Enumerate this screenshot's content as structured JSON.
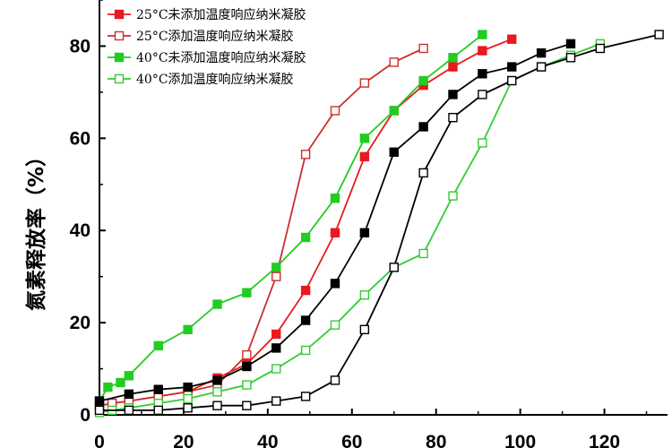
{
  "chart_data": {
    "type": "line",
    "title": "",
    "xlabel": "",
    "ylabel": "氮素释放率（%）",
    "xlim": [
      0,
      135
    ],
    "ylim": [
      0,
      90
    ],
    "x_ticks": [
      0,
      20,
      40,
      60,
      80,
      100,
      120
    ],
    "y_ticks": [
      0,
      20,
      40,
      60,
      80
    ],
    "legend_position": "top-left",
    "series": [
      {
        "name": "25°C未添加温度响应纳米凝胶",
        "color": "#e8191f",
        "marker": "filled-square",
        "x": [
          0,
          3,
          7,
          14,
          21,
          28,
          35,
          42,
          49,
          56,
          63,
          70,
          77,
          84,
          91,
          98
        ],
        "y": [
          2,
          2.5,
          3,
          4,
          5,
          8,
          11,
          17.5,
          27,
          39.5,
          56,
          66,
          71.5,
          75.5,
          79,
          81.5
        ]
      },
      {
        "name": "25°C添加温度响应纳米凝胶",
        "color": "#c9302c",
        "marker": "open-square",
        "x": [
          0,
          3,
          7,
          14,
          21,
          28,
          35,
          42,
          49,
          56,
          63,
          70,
          77
        ],
        "y": [
          2,
          2.5,
          3,
          4,
          5,
          6.5,
          13,
          30,
          56.5,
          66,
          72,
          76.5,
          79.5
        ]
      },
      {
        "name": "40°C未添加温度响应纳米凝胶",
        "color": "#22cc22",
        "marker": "filled-square",
        "x": [
          0,
          2,
          5,
          7,
          14,
          21,
          28,
          35,
          42,
          49,
          56,
          63,
          70,
          77,
          84,
          91
        ],
        "y": [
          3,
          6,
          7,
          8.5,
          15,
          18.5,
          24,
          26.5,
          32,
          38.5,
          47,
          60,
          66,
          72.5,
          77.5,
          82.5
        ]
      },
      {
        "name": "40°C添加温度响应纳米凝胶",
        "color": "#33cc33",
        "marker": "open-square",
        "x": [
          0,
          3,
          7,
          14,
          21,
          28,
          35,
          42,
          49,
          56,
          63,
          70,
          77,
          84,
          91,
          98,
          105,
          112,
          119
        ],
        "y": [
          0.5,
          1,
          1.5,
          2.5,
          3.5,
          5,
          6.5,
          10,
          14,
          19.5,
          26,
          32,
          35,
          47.5,
          59,
          72.5,
          75.5,
          78,
          80.5
        ]
      },
      {
        "name": "",
        "color": "#000000",
        "marker": "filled-square",
        "x": [
          0,
          7,
          14,
          21,
          28,
          35,
          42,
          49,
          56,
          63,
          70,
          77,
          84,
          91,
          98,
          105,
          112
        ],
        "y": [
          3,
          4.5,
          5.5,
          6,
          7.5,
          10.5,
          14.5,
          20.5,
          28.5,
          39.5,
          57,
          62.5,
          69.5,
          74,
          75.5,
          78.5,
          80.5
        ]
      },
      {
        "name": "",
        "color": "#000000",
        "marker": "open-square",
        "x": [
          0,
          7,
          14,
          21,
          28,
          35,
          42,
          49,
          56,
          63,
          70,
          77,
          84,
          91,
          98,
          105,
          112,
          119,
          133
        ],
        "y": [
          1,
          1,
          1,
          1.5,
          2,
          2,
          3,
          4,
          7.5,
          18.5,
          32,
          52.5,
          64.5,
          69.5,
          72.5,
          75.5,
          77.5,
          79.5,
          82.5
        ]
      }
    ]
  }
}
